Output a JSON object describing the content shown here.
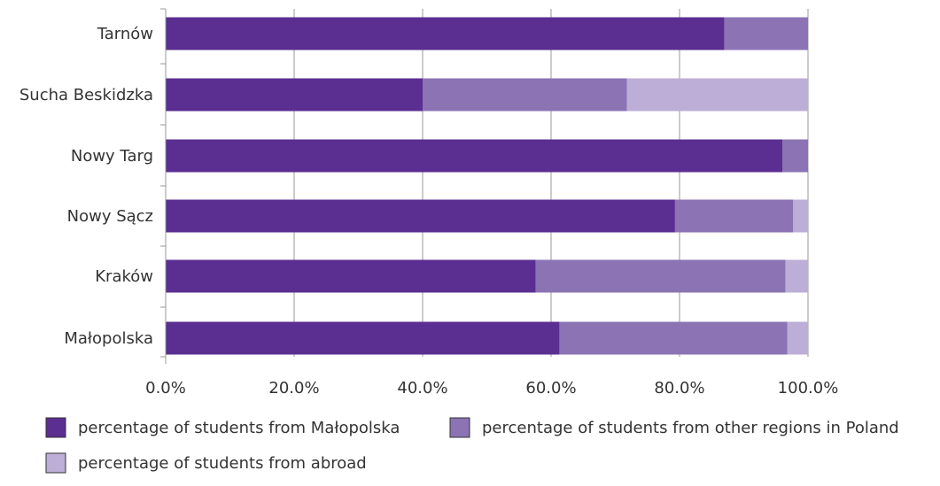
{
  "chart_data": {
    "type": "bar",
    "orientation": "horizontal",
    "stacked": true,
    "categories": [
      "Tarnów",
      "Sucha Beskidzka",
      "Nowy Targ",
      "Nowy Sącz",
      "Kraków",
      "Małopolska"
    ],
    "series": [
      {
        "name": "percentage of students from Małopolska",
        "values": [
          87.0,
          40.0,
          96.0,
          79.3,
          57.6,
          61.3
        ],
        "color": "#5b2e91"
      },
      {
        "name": "percentage of students from other regions in Poland",
        "values": [
          13.0,
          31.8,
          4.0,
          18.4,
          38.9,
          35.5
        ],
        "color": "#8b73b4"
      },
      {
        "name": "percentage of students from abroad",
        "values": [
          0.0,
          28.2,
          0.0,
          2.3,
          3.5,
          3.2
        ],
        "color": "#bcaed6"
      }
    ],
    "xlim": [
      0,
      100
    ],
    "x_ticks": [
      "0.0%",
      "20.0%",
      "40.0%",
      "60.0%",
      "80.0%",
      "100.0%"
    ],
    "grid": true,
    "legend_position": "bottom"
  }
}
